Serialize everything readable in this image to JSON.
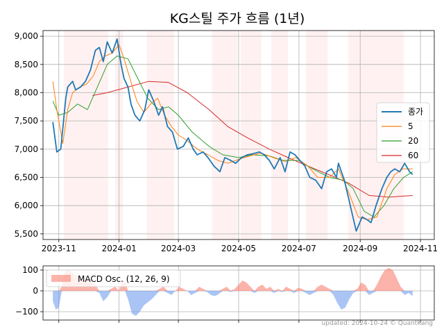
{
  "chart_data": [
    {
      "type": "line",
      "title": "KG스틸 주가 흐름 (1년)",
      "xlabel": "",
      "ylabel": "",
      "x_ticks": [
        "2023-11",
        "2024-01",
        "2024-03",
        "2024-05",
        "2024-07",
        "2024-09",
        "2024-11"
      ],
      "y_ticks": [
        "5,500",
        "6,000",
        "6,500",
        "7,000",
        "7,500",
        "8,000",
        "8,500",
        "9,000"
      ],
      "ylim": [
        5400,
        9100
      ],
      "xlim": [
        "2023-10-16",
        "2024-11-15"
      ],
      "grid": true,
      "legend_position": "right",
      "colors": {
        "close": "#1f77b4",
        "ma5": "#ff7f0e",
        "ma20": "#2ca02c",
        "ma60": "#d62728",
        "shade": "#ffe5e5"
      },
      "shaded_periods": [
        [
          "2023-11-06",
          "2023-12-21"
        ],
        [
          "2023-12-28",
          "2024-01-05"
        ],
        [
          "2024-01-29",
          "2024-02-26"
        ],
        [
          "2024-04-04",
          "2024-04-30"
        ],
        [
          "2024-05-03",
          "2024-05-24"
        ],
        [
          "2024-06-03",
          "2024-06-20"
        ],
        [
          "2024-07-08",
          "2024-07-30"
        ],
        [
          "2024-08-20",
          "2024-10-15"
        ]
      ],
      "series": [
        {
          "name": "종가",
          "x": [
            "2023-10-26",
            "2023-10-30",
            "2023-11-03",
            "2023-11-08",
            "2023-11-10",
            "2023-11-15",
            "2023-11-18",
            "2023-11-23",
            "2023-11-28",
            "2023-12-03",
            "2023-12-08",
            "2023-12-12",
            "2023-12-16",
            "2023-12-20",
            "2023-12-25",
            "2023-12-30",
            "2024-01-03",
            "2024-01-06",
            "2024-01-10",
            "2024-01-13",
            "2024-01-17",
            "2024-01-22",
            "2024-01-27",
            "2024-01-31",
            "2024-02-05",
            "2024-02-10",
            "2024-02-14",
            "2024-02-19",
            "2024-02-24",
            "2024-02-29",
            "2024-03-06",
            "2024-03-11",
            "2024-03-16",
            "2024-03-20",
            "2024-03-26",
            "2024-03-31",
            "2024-04-06",
            "2024-04-12",
            "2024-04-17",
            "2024-04-23",
            "2024-04-28",
            "2024-05-04",
            "2024-05-10",
            "2024-05-16",
            "2024-05-22",
            "2024-05-27",
            "2024-06-01",
            "2024-06-06",
            "2024-06-12",
            "2024-06-17",
            "2024-06-22",
            "2024-06-27",
            "2024-07-02",
            "2024-07-07",
            "2024-07-12",
            "2024-07-18",
            "2024-07-24",
            "2024-07-29",
            "2024-08-03",
            "2024-08-08",
            "2024-08-10",
            "2024-08-16",
            "2024-08-22",
            "2024-08-28",
            "2024-09-03",
            "2024-09-08",
            "2024-09-12",
            "2024-09-17",
            "2024-09-23",
            "2024-09-28",
            "2024-10-02",
            "2024-10-06",
            "2024-10-11",
            "2024-10-16",
            "2024-10-21",
            "2024-10-24"
          ],
          "values": [
            7480,
            6950,
            7000,
            7900,
            8100,
            8200,
            8050,
            8100,
            8200,
            8400,
            8750,
            8800,
            8550,
            8900,
            8700,
            8950,
            8500,
            8250,
            8100,
            7800,
            7600,
            7500,
            7700,
            8050,
            7850,
            7600,
            7750,
            7400,
            7300,
            7000,
            7050,
            7200,
            7000,
            6900,
            6950,
            6850,
            6700,
            6600,
            6850,
            6800,
            6750,
            6850,
            6900,
            6920,
            6950,
            6900,
            6800,
            6650,
            6850,
            6600,
            6950,
            6900,
            6800,
            6700,
            6500,
            6450,
            6300,
            6600,
            6650,
            6500,
            6750,
            6450,
            6000,
            5550,
            5800,
            5750,
            5700,
            6000,
            6300,
            6500,
            6600,
            6650,
            6600,
            6750,
            6600,
            6550
          ]
        },
        {
          "name": "5",
          "x": [
            "2023-10-26",
            "2023-10-30",
            "2023-11-05",
            "2023-11-10",
            "2023-11-15",
            "2023-11-22",
            "2023-11-29",
            "2023-12-06",
            "2023-12-12",
            "2023-12-18",
            "2023-12-25",
            "2024-01-01",
            "2024-01-06",
            "2024-01-12",
            "2024-01-19",
            "2024-01-26",
            "2024-02-02",
            "2024-02-09",
            "2024-02-16",
            "2024-02-23",
            "2024-03-01",
            "2024-03-10",
            "2024-03-20",
            "2024-03-31",
            "2024-04-10",
            "2024-04-20",
            "2024-05-01",
            "2024-05-12",
            "2024-05-24",
            "2024-06-05",
            "2024-06-17",
            "2024-06-28",
            "2024-07-10",
            "2024-07-20",
            "2024-08-01",
            "2024-08-10",
            "2024-08-20",
            "2024-08-30",
            "2024-09-08",
            "2024-09-18",
            "2024-09-28",
            "2024-10-06",
            "2024-10-14",
            "2024-10-24"
          ],
          "values": [
            8200,
            7700,
            7100,
            7700,
            8000,
            8100,
            8150,
            8300,
            8550,
            8650,
            8700,
            8850,
            8600,
            8250,
            7850,
            7650,
            7800,
            7900,
            7600,
            7400,
            7250,
            7150,
            7000,
            6900,
            6800,
            6750,
            6820,
            6880,
            6930,
            6850,
            6780,
            6850,
            6700,
            6500,
            6500,
            6650,
            6250,
            5800,
            5750,
            5800,
            6300,
            6550,
            6650,
            6650
          ]
        },
        {
          "name": "20",
          "x": [
            "2023-10-26",
            "2023-11-01",
            "2023-11-10",
            "2023-11-20",
            "2023-11-30",
            "2023-12-10",
            "2023-12-20",
            "2023-12-30",
            "2024-01-10",
            "2024-01-20",
            "2024-01-30",
            "2024-02-10",
            "2024-02-20",
            "2024-03-01",
            "2024-03-15",
            "2024-04-01",
            "2024-04-15",
            "2024-05-01",
            "2024-05-15",
            "2024-06-01",
            "2024-06-15",
            "2024-07-01",
            "2024-07-15",
            "2024-08-01",
            "2024-08-15",
            "2024-08-25",
            "2024-09-05",
            "2024-09-15",
            "2024-09-25",
            "2024-10-05",
            "2024-10-15",
            "2024-10-24"
          ],
          "values": [
            7850,
            7600,
            7650,
            7800,
            7700,
            8100,
            8500,
            8650,
            8600,
            8250,
            7900,
            7700,
            7750,
            7600,
            7300,
            7050,
            6900,
            6850,
            6900,
            6880,
            6800,
            6800,
            6650,
            6500,
            6450,
            6300,
            5900,
            5800,
            6000,
            6300,
            6500,
            6600
          ]
        },
        {
          "name": "60",
          "x": [
            "2023-12-05",
            "2023-12-20",
            "2024-01-10",
            "2024-01-31",
            "2024-02-20",
            "2024-03-10",
            "2024-04-01",
            "2024-04-20",
            "2024-05-10",
            "2024-06-01",
            "2024-06-20",
            "2024-07-10",
            "2024-07-31",
            "2024-08-20",
            "2024-09-10",
            "2024-09-30",
            "2024-10-24"
          ],
          "values": [
            7950,
            8000,
            8100,
            8200,
            8180,
            8000,
            7700,
            7400,
            7200,
            7000,
            6850,
            6700,
            6550,
            6400,
            6180,
            6150,
            6180
          ]
        }
      ]
    },
    {
      "type": "area",
      "title": "",
      "legend_label": "MACD Osc. (12, 26, 9)",
      "y_ticks": [
        "100",
        "0",
        "−100"
      ],
      "ylim": [
        -140,
        120
      ],
      "grid": true,
      "colors": {
        "positive": "#fa8072",
        "negative": "#6495ed"
      },
      "series": [
        {
          "name": "MACD Osc. (12, 26, 9)",
          "x": [
            "2023-10-26",
            "2023-10-29",
            "2023-11-01",
            "2023-11-04",
            "2023-11-07",
            "2023-11-10",
            "2023-11-14",
            "2023-11-18",
            "2023-11-22",
            "2023-11-26",
            "2023-11-30",
            "2023-12-04",
            "2023-12-08",
            "2023-12-12",
            "2023-12-16",
            "2023-12-20",
            "2023-12-24",
            "2023-12-28",
            "2024-01-01",
            "2024-01-04",
            "2024-01-07",
            "2024-01-10",
            "2024-01-14",
            "2024-01-18",
            "2024-01-22",
            "2024-01-26",
            "2024-01-30",
            "2024-02-03",
            "2024-02-07",
            "2024-02-11",
            "2024-02-15",
            "2024-02-19",
            "2024-02-23",
            "2024-02-27",
            "2024-03-02",
            "2024-03-06",
            "2024-03-10",
            "2024-03-14",
            "2024-03-18",
            "2024-03-22",
            "2024-03-26",
            "2024-03-30",
            "2024-04-03",
            "2024-04-07",
            "2024-04-11",
            "2024-04-15",
            "2024-04-19",
            "2024-04-23",
            "2024-04-27",
            "2024-05-01",
            "2024-05-05",
            "2024-05-09",
            "2024-05-13",
            "2024-05-17",
            "2024-05-21",
            "2024-05-25",
            "2024-05-29",
            "2024-06-02",
            "2024-06-06",
            "2024-06-10",
            "2024-06-14",
            "2024-06-18",
            "2024-06-22",
            "2024-06-26",
            "2024-06-30",
            "2024-07-04",
            "2024-07-08",
            "2024-07-12",
            "2024-07-16",
            "2024-07-20",
            "2024-07-24",
            "2024-07-28",
            "2024-08-01",
            "2024-08-05",
            "2024-08-09",
            "2024-08-13",
            "2024-08-17",
            "2024-08-21",
            "2024-08-25",
            "2024-08-29",
            "2024-09-02",
            "2024-09-06",
            "2024-09-10",
            "2024-09-14",
            "2024-09-18",
            "2024-09-22",
            "2024-09-26",
            "2024-09-30",
            "2024-10-04",
            "2024-10-08",
            "2024-10-12",
            "2024-10-16",
            "2024-10-20",
            "2024-10-24"
          ],
          "values": [
            -50,
            -90,
            -80,
            20,
            90,
            100,
            90,
            75,
            60,
            50,
            55,
            40,
            30,
            -10,
            -50,
            -30,
            10,
            20,
            0,
            50,
            45,
            -40,
            -110,
            -120,
            -100,
            -70,
            -55,
            -40,
            -20,
            10,
            20,
            -10,
            -20,
            0,
            20,
            10,
            0,
            -20,
            -10,
            20,
            10,
            -5,
            -20,
            -25,
            -15,
            10,
            20,
            -5,
            10,
            30,
            50,
            40,
            20,
            -10,
            20,
            30,
            10,
            20,
            -10,
            10,
            -5,
            20,
            10,
            -10,
            15,
            10,
            -10,
            -20,
            -10,
            20,
            30,
            20,
            10,
            -20,
            -60,
            -90,
            -80,
            -40,
            -10,
            10,
            40,
            30,
            -20,
            -10,
            30,
            70,
            100,
            110,
            100,
            60,
            20,
            -20,
            -10,
            -25
          ]
        }
      ]
    }
  ],
  "footer": {
    "credit": "updated: 2024-10-24 © QuantKang"
  }
}
